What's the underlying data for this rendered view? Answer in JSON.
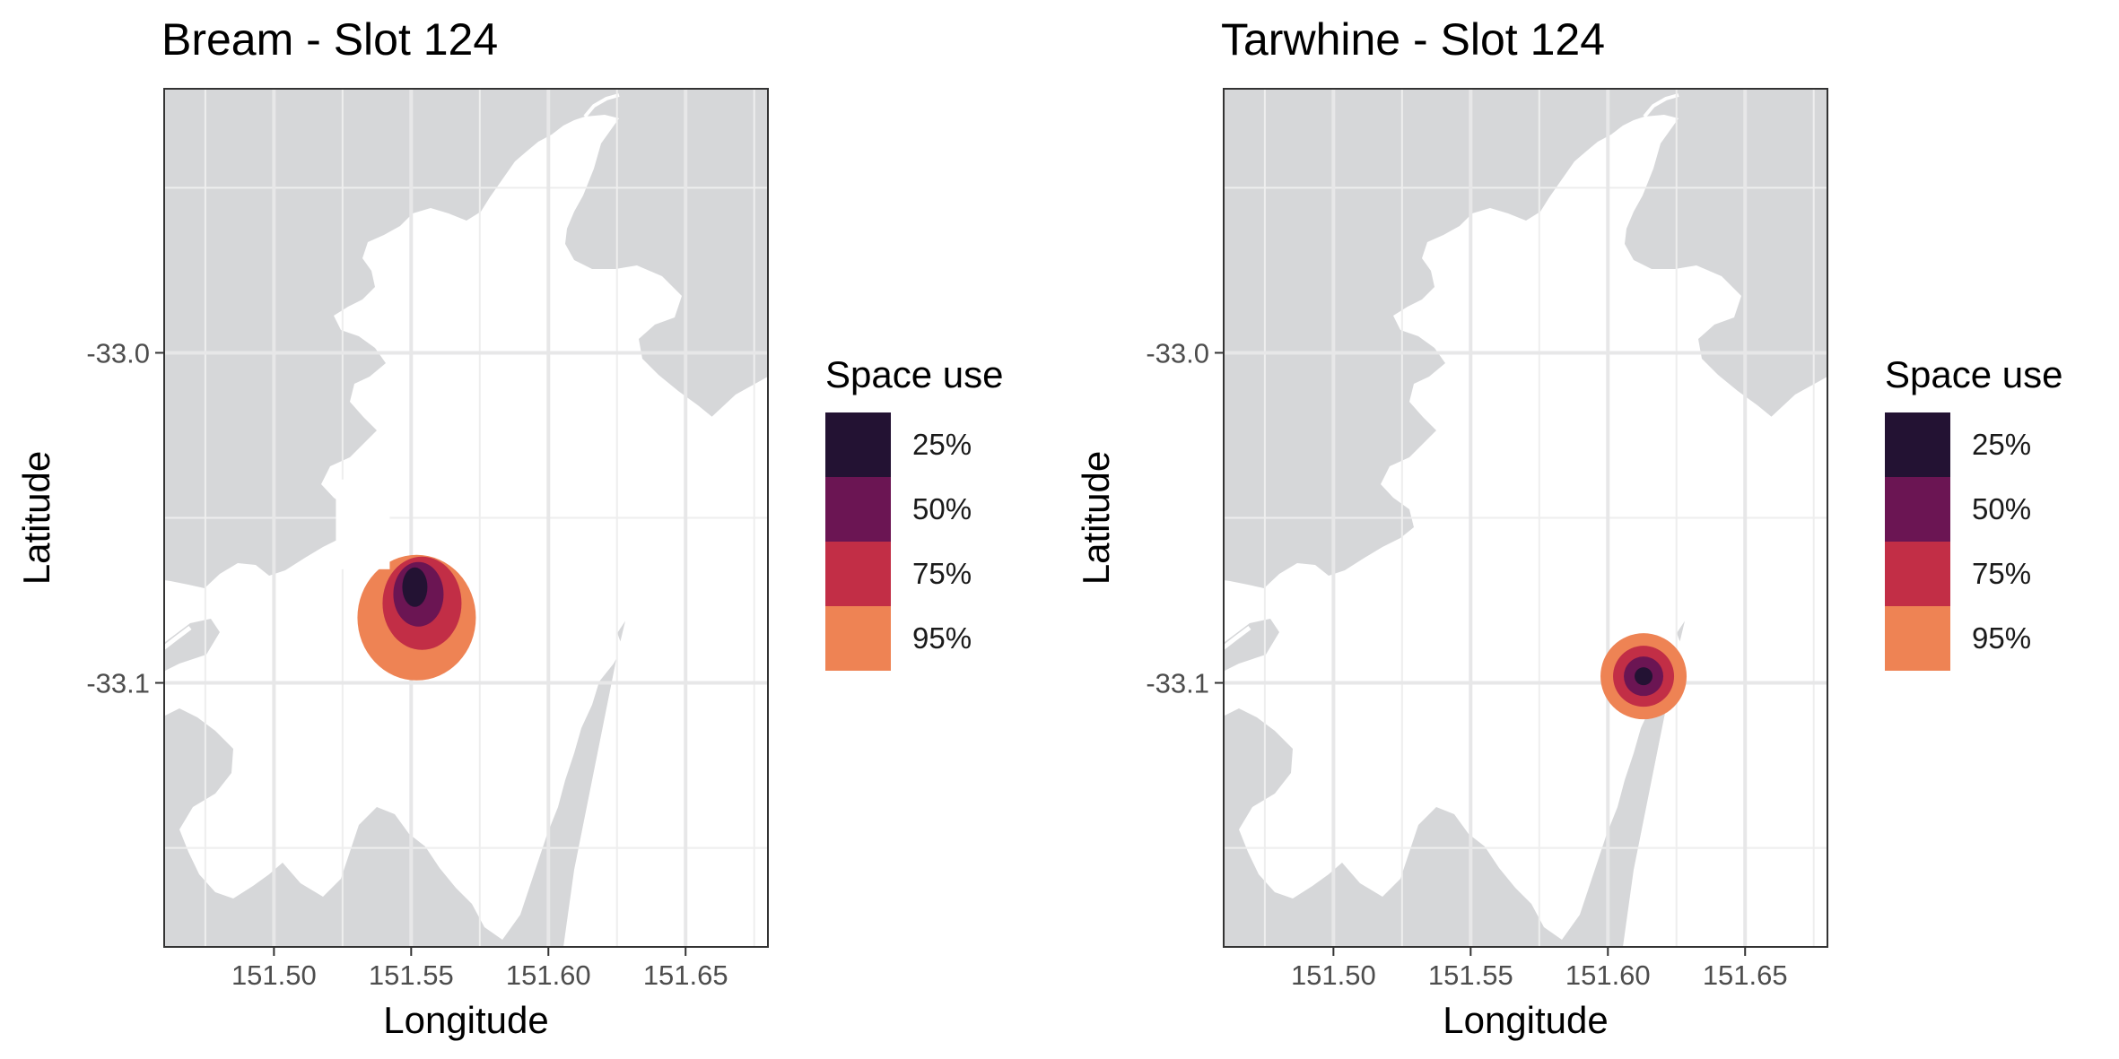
{
  "panels": [
    {
      "title": "Bream - Slot 124",
      "xlabel": "Longitude",
      "ylabel": "Latitude",
      "xticks": [
        151.5,
        151.55,
        151.6,
        151.65
      ],
      "xtick_labels": [
        "151.50",
        "151.55",
        "151.60",
        "151.65"
      ],
      "yticks": [
        -33.0,
        -33.1
      ],
      "ytick_labels": [
        "-33.0",
        "-33.1"
      ],
      "xlim": [
        151.46,
        151.68
      ],
      "ylim": [
        -33.18,
        -32.92
      ],
      "hotspot": {
        "lon": 151.552,
        "lat": -33.071,
        "shape": "crescent"
      }
    },
    {
      "title": "Tarwhine - Slot 124",
      "xlabel": "Longitude",
      "ylabel": "Latitude",
      "xticks": [
        151.5,
        151.55,
        151.6,
        151.65
      ],
      "xtick_labels": [
        "151.50",
        "151.55",
        "151.60",
        "151.65"
      ],
      "yticks": [
        -33.0,
        -33.1
      ],
      "ytick_labels": [
        "-33.0",
        "-33.1"
      ],
      "xlim": [
        151.46,
        151.68
      ],
      "ylim": [
        -33.18,
        -32.92
      ],
      "hotspot": {
        "lon": 151.613,
        "lat": -33.098,
        "shape": "circle"
      }
    }
  ],
  "legend": {
    "title": "Space use",
    "items": [
      {
        "label": "25%",
        "color": "#231233"
      },
      {
        "label": "50%",
        "color": "#6b1553"
      },
      {
        "label": "75%",
        "color": "#c22e46"
      },
      {
        "label": "95%",
        "color": "#ee8354"
      }
    ]
  },
  "colors": {
    "land": "#d6d7d9",
    "water": "#ffffff",
    "grid_major": "#e7e7e8",
    "grid_minor": "#eeeeee",
    "frame": "#333333"
  }
}
